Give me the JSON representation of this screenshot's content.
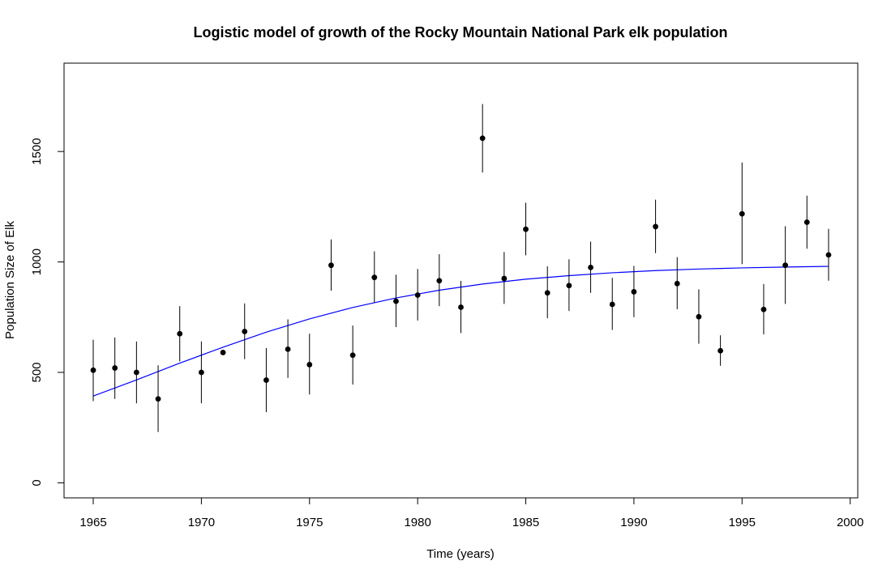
{
  "chart_data": {
    "type": "scatter",
    "title": "Logistic model of growth of the Rocky Mountain National Park elk population",
    "xlabel": "Time (years)",
    "ylabel": "Population Size of Elk",
    "xlim": [
      1963.65,
      2000.35
    ],
    "ylim": [
      -68,
      1900
    ],
    "xticks": [
      1965,
      1970,
      1975,
      1980,
      1985,
      1990,
      1995,
      2000
    ],
    "yticks": [
      0,
      500,
      1000,
      1500
    ],
    "grid": false,
    "legend": "none",
    "series": [
      {
        "kind": "points-with-error-bars",
        "color": "#000000",
        "x": [
          1965,
          1966,
          1967,
          1968,
          1969,
          1970,
          1971,
          1972,
          1973,
          1974,
          1975,
          1976,
          1977,
          1978,
          1979,
          1980,
          1981,
          1982,
          1983,
          1984,
          1985,
          1986,
          1987,
          1988,
          1989,
          1990,
          1991,
          1992,
          1993,
          1994,
          1995,
          1996,
          1997,
          1998,
          1999
        ],
        "y": [
          510,
          520,
          500,
          380,
          675,
          500,
          590,
          685,
          465,
          605,
          535,
          985,
          578,
          930,
          822,
          850,
          915,
          795,
          1560,
          925,
          1148,
          860,
          893,
          975,
          808,
          865,
          1160,
          902,
          752,
          598,
          1218,
          785,
          985,
          1180,
          1032
        ],
        "lower": [
          370,
          380,
          360,
          230,
          550,
          360,
          582,
          560,
          320,
          475,
          400,
          870,
          445,
          815,
          705,
          735,
          800,
          678,
          1405,
          810,
          1030,
          745,
          778,
          860,
          692,
          750,
          1040,
          786,
          630,
          530,
          990,
          672,
          810,
          1060,
          915
        ],
        "upper": [
          648,
          658,
          640,
          532,
          800,
          640,
          598,
          812,
          610,
          740,
          675,
          1102,
          712,
          1048,
          942,
          968,
          1035,
          914,
          1715,
          1045,
          1268,
          980,
          1012,
          1092,
          928,
          982,
          1282,
          1022,
          876,
          668,
          1450,
          900,
          1162,
          1300,
          1150
        ]
      },
      {
        "kind": "line",
        "color": "#0000ff",
        "model": "logistic",
        "x": [
          1965,
          1967,
          1969,
          1971,
          1973,
          1975,
          1977,
          1979,
          1981,
          1983,
          1985,
          1987,
          1989,
          1991,
          1993,
          1995,
          1997,
          1999
        ],
        "y": [
          393,
          466,
          542,
          614,
          682,
          742,
          794,
          837,
          872,
          900,
          922,
          938,
          951,
          961,
          968,
          973,
          977,
          980
        ]
      }
    ]
  }
}
